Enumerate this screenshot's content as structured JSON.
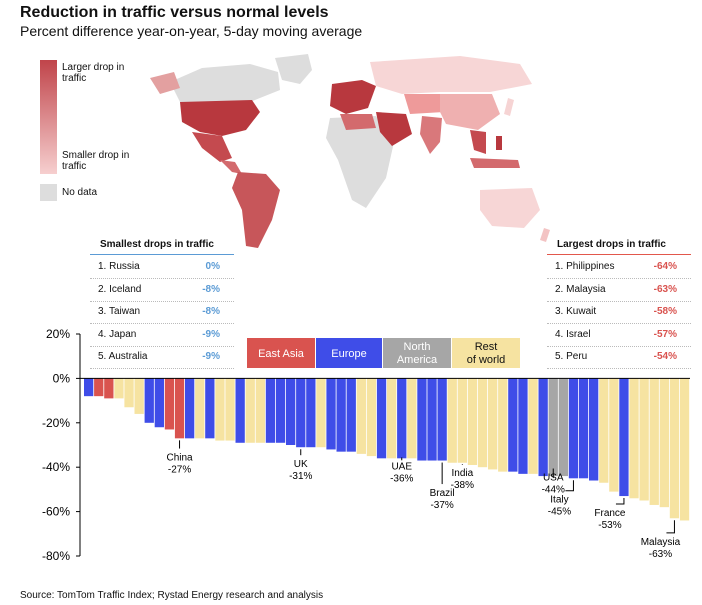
{
  "title": "Reduction in traffic versus normal levels",
  "subtitle": "Percent difference year-on-year, 5-day moving average",
  "map_legend": {
    "larger": "Larger drop in traffic",
    "smaller": "Smaller drop in traffic",
    "no_data": "No data",
    "colors": {
      "high": "#c0444a",
      "low": "#f6cfcf",
      "none": "#dddddd"
    }
  },
  "smallest_drops": {
    "title": "Smallest drops in traffic",
    "rule_color": "#5b9bd5",
    "value_color": "#5b9bd5",
    "items": [
      {
        "label": "1. Russia",
        "value": "0%"
      },
      {
        "label": "2. Iceland",
        "value": "-8%"
      },
      {
        "label": "3. Taiwan",
        "value": "-8%"
      },
      {
        "label": "4. Japan",
        "value": "-9%"
      },
      {
        "label": "5. Australia",
        "value": "-9%"
      }
    ]
  },
  "largest_drops": {
    "title": "Largest drops in traffic",
    "rule_color": "#e2574c",
    "value_color": "#d9534f",
    "items": [
      {
        "label": "1. Philippines",
        "value": "-64%"
      },
      {
        "label": "2. Malaysia",
        "value": "-63%"
      },
      {
        "label": "3. Kuwait",
        "value": "-58%"
      },
      {
        "label": "4. Israel",
        "value": "-57%"
      },
      {
        "label": "5. Peru",
        "value": "-54%"
      }
    ]
  },
  "chart_data": {
    "type": "bar",
    "title": "Reduction in traffic versus normal levels",
    "ylabel": "Percent difference year-on-year, 5-day moving average",
    "ylim": [
      -80,
      20
    ],
    "yticks": [
      20,
      0,
      -20,
      -40,
      -60,
      -80
    ],
    "ytick_labels": [
      "20%",
      "0%",
      "-20%",
      "-40%",
      "-60%",
      "-80%"
    ],
    "legend": [
      {
        "name": "East Asia",
        "color": "#d9534f"
      },
      {
        "name": "Europe",
        "color": "#3f4de8"
      },
      {
        "name": "North America",
        "color": "#a6a6a6"
      },
      {
        "name": "Rest of world",
        "color": "#f6e3a1"
      }
    ],
    "group_colors": {
      "EA": "#d9534f",
      "EU": "#3f4de8",
      "NA": "#a6a6a6",
      "RW": "#f6e3a1"
    },
    "bars": [
      {
        "v": -8,
        "g": "EU"
      },
      {
        "v": -8,
        "g": "EA"
      },
      {
        "v": -9,
        "g": "EA"
      },
      {
        "v": -9,
        "g": "RW"
      },
      {
        "v": -13,
        "g": "RW"
      },
      {
        "v": -16,
        "g": "RW"
      },
      {
        "v": -20,
        "g": "EU"
      },
      {
        "v": -22,
        "g": "EU"
      },
      {
        "v": -23,
        "g": "EA"
      },
      {
        "v": -27,
        "g": "EA"
      },
      {
        "v": -27,
        "g": "EU"
      },
      {
        "v": -27,
        "g": "RW"
      },
      {
        "v": -27,
        "g": "EU"
      },
      {
        "v": -28,
        "g": "RW"
      },
      {
        "v": -28,
        "g": "RW"
      },
      {
        "v": -29,
        "g": "EU"
      },
      {
        "v": -29,
        "g": "RW"
      },
      {
        "v": -29,
        "g": "RW"
      },
      {
        "v": -29,
        "g": "EU"
      },
      {
        "v": -29,
        "g": "EU"
      },
      {
        "v": -30,
        "g": "EU"
      },
      {
        "v": -31,
        "g": "EU"
      },
      {
        "v": -31,
        "g": "EU"
      },
      {
        "v": -31,
        "g": "RW"
      },
      {
        "v": -32,
        "g": "EU"
      },
      {
        "v": -33,
        "g": "EU"
      },
      {
        "v": -33,
        "g": "EU"
      },
      {
        "v": -34,
        "g": "RW"
      },
      {
        "v": -35,
        "g": "RW"
      },
      {
        "v": -36,
        "g": "EU"
      },
      {
        "v": -36,
        "g": "RW"
      },
      {
        "v": -36,
        "g": "EU"
      },
      {
        "v": -36,
        "g": "RW"
      },
      {
        "v": -37,
        "g": "EU"
      },
      {
        "v": -37,
        "g": "EU"
      },
      {
        "v": -37,
        "g": "EU"
      },
      {
        "v": -38,
        "g": "RW"
      },
      {
        "v": -38,
        "g": "RW"
      },
      {
        "v": -39,
        "g": "RW"
      },
      {
        "v": -40,
        "g": "RW"
      },
      {
        "v": -41,
        "g": "RW"
      },
      {
        "v": -42,
        "g": "RW"
      },
      {
        "v": -42,
        "g": "EU"
      },
      {
        "v": -43,
        "g": "EU"
      },
      {
        "v": -43,
        "g": "RW"
      },
      {
        "v": -44,
        "g": "EU"
      },
      {
        "v": -44,
        "g": "NA"
      },
      {
        "v": -44,
        "g": "NA"
      },
      {
        "v": -45,
        "g": "EU"
      },
      {
        "v": -45,
        "g": "EU"
      },
      {
        "v": -46,
        "g": "EU"
      },
      {
        "v": -47,
        "g": "RW"
      },
      {
        "v": -51,
        "g": "RW"
      },
      {
        "v": -53,
        "g": "EU"
      },
      {
        "v": -54,
        "g": "RW"
      },
      {
        "v": -55,
        "g": "RW"
      },
      {
        "v": -57,
        "g": "RW"
      },
      {
        "v": -58,
        "g": "RW"
      },
      {
        "v": -63,
        "g": "RW"
      },
      {
        "v": -64,
        "g": "RW"
      }
    ],
    "annotations": [
      {
        "bar": 9,
        "name": "China",
        "value": "-27%",
        "ty": -37,
        "leader": false
      },
      {
        "bar": 21,
        "name": "UK",
        "value": "-31%",
        "ty": -40,
        "leader": false
      },
      {
        "bar": 31,
        "name": "UAE",
        "value": "-36%",
        "ty": -41,
        "leader": false
      },
      {
        "bar": 35,
        "name": "Brazil",
        "value": "-37%",
        "ty": -53,
        "leader": false
      },
      {
        "bar": 37,
        "name": "India",
        "value": "-38%",
        "ty": -44,
        "leader": false
      },
      {
        "bar": 46,
        "name": "USA",
        "value": "-44%",
        "ty": -46,
        "leader": false
      },
      {
        "bar": 48,
        "name": "Italy",
        "value": "-45%",
        "ty": -56,
        "leader": true
      },
      {
        "bar": 53,
        "name": "France",
        "value": "-53%",
        "ty": -62,
        "leader": true
      },
      {
        "bar": 58,
        "name": "Malaysia",
        "value": "-63%",
        "ty": -75,
        "leader": true
      }
    ]
  },
  "source": "Source: TomTom Traffic Index; Rystad Energy research and analysis"
}
